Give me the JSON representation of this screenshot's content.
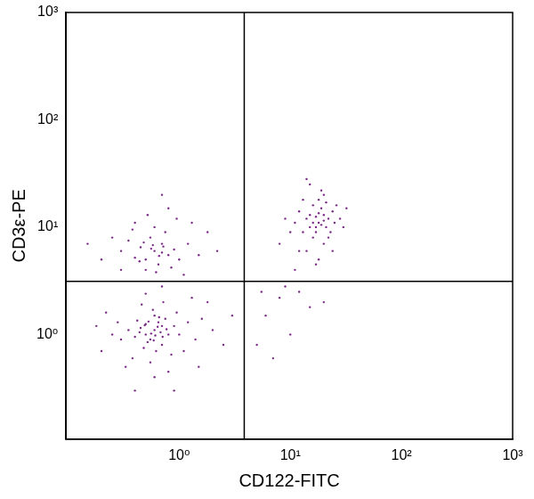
{
  "chart_data": {
    "type": "scatter",
    "x_label": "CD122-FITC",
    "y_label": "CD3ε-PE",
    "log": true,
    "grid": false,
    "color": "#7b2a88",
    "xlim": [
      0.096,
      1000
    ],
    "ylim": [
      0.106,
      1000
    ],
    "xticks": [
      {
        "value": 1,
        "label": "10⁰"
      },
      {
        "value": 10,
        "label": "10¹"
      },
      {
        "value": 100,
        "label": "10²"
      },
      {
        "value": 1000,
        "label": "10³"
      }
    ],
    "yticks": [
      {
        "value": 1,
        "label": "10⁰"
      },
      {
        "value": 10,
        "label": "10¹"
      },
      {
        "value": 100,
        "label": "10²"
      },
      {
        "value": 1000,
        "label": "10³"
      }
    ],
    "quadrant_x": 3.85,
    "quadrant_y": 3.13,
    "x": [
      0.6,
      0.5,
      0.7,
      0.55,
      0.65,
      0.45,
      0.8,
      0.4,
      0.6,
      0.7,
      0.5,
      0.75,
      0.35,
      0.9,
      0.62,
      0.48,
      0.58,
      0.42,
      0.68,
      0.52,
      1.0,
      1.2,
      0.3,
      0.28,
      0.85,
      0.95,
      0.38,
      0.55,
      0.72,
      0.46,
      1.4,
      1.6,
      0.25,
      0.22,
      0.33,
      0.8,
      0.6,
      1.1,
      1.3,
      0.5,
      0.64,
      0.56,
      0.71,
      0.49,
      0.59,
      0.66,
      0.44,
      0.77,
      0.53,
      0.61,
      2.0,
      2.5,
      1.8,
      0.2,
      0.18,
      0.9,
      0.4,
      3.0,
      0.7,
      1.5,
      0.6,
      0.5,
      0.7,
      0.8,
      0.45,
      0.55,
      0.65,
      0.9,
      0.4,
      0.75,
      0.35,
      1.0,
      0.6,
      0.5,
      1.2,
      0.3,
      0.85,
      0.7,
      0.58,
      0.48,
      1.5,
      0.25,
      0.95,
      0.4,
      0.2,
      1.8,
      0.62,
      0.52,
      1.1,
      0.8,
      0.66,
      0.56,
      0.72,
      0.44,
      0.38,
      2.2,
      0.15,
      0.3,
      1.3,
      0.7,
      18,
      15,
      20,
      17,
      22,
      14,
      19,
      16,
      21,
      25,
      12,
      18,
      20,
      13,
      24,
      17,
      19,
      15,
      23,
      16,
      11,
      28,
      14,
      20,
      18,
      26,
      13,
      22,
      10,
      30,
      15,
      19,
      12,
      17,
      9,
      21,
      16,
      18,
      20,
      17,
      8,
      32,
      14,
      11,
      24,
      6,
      8,
      10,
      5,
      12,
      7,
      15,
      9,
      20,
      5.5
    ],
    "values": [
      1.1,
      1.0,
      1.2,
      0.9,
      1.3,
      1.15,
      1.0,
      0.95,
      1.5,
      0.8,
      1.25,
      1.4,
      1.1,
      1.2,
      0.7,
      0.75,
      1.7,
      1.35,
      1.05,
      0.85,
      1.0,
      1.3,
      0.9,
      1.3,
      0.65,
      1.6,
      0.6,
      0.55,
      2.0,
      1.9,
      0.9,
      1.4,
      1.0,
      1.6,
      0.5,
      0.45,
      0.4,
      0.7,
      2.2,
      2.4,
      1.18,
      1.02,
      0.95,
      1.22,
      0.88,
      1.45,
      1.05,
      1.12,
      1.32,
      0.98,
      1.1,
      0.8,
      2.0,
      0.7,
      1.2,
      0.3,
      0.3,
      1.5,
      2.8,
      0.5,
      6,
      5,
      7,
      5.5,
      6.5,
      8,
      4.5,
      6.2,
      5.2,
      9,
      7.5,
      5,
      10,
      4,
      7,
      6,
      4.2,
      5.8,
      6.8,
      7.2,
      5.5,
      8,
      12,
      11,
      5,
      9,
      3.8,
      13,
      3.6,
      15,
      5.4,
      6.3,
      6.6,
      4.8,
      9.5,
      6,
      7,
      4,
      11,
      20,
      11,
      10,
      13,
      9,
      12,
      12,
      15,
      8,
      10,
      11,
      14,
      18,
      7,
      9,
      14,
      12.5,
      10.5,
      13,
      9,
      16,
      11,
      12,
      6,
      20,
      5,
      16,
      18,
      8,
      9,
      10,
      25,
      22,
      6,
      4.5,
      12,
      17,
      11,
      13.5,
      11.5,
      10,
      7,
      15,
      28,
      4,
      6,
      1.5,
      2.2,
      1.0,
      0.8,
      2.5,
      0.6,
      1.8,
      2.8,
      2.0,
      2.5
    ]
  }
}
